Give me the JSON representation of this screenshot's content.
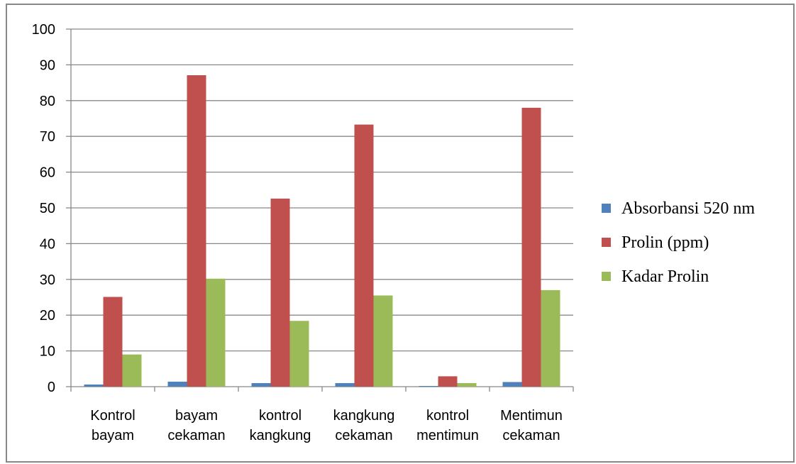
{
  "chart_data": {
    "type": "bar",
    "categories": [
      [
        "Kontrol",
        "bayam"
      ],
      [
        "bayam",
        "cekaman"
      ],
      [
        "kontrol",
        "kangkung"
      ],
      [
        "kangkung",
        "cekaman"
      ],
      [
        "kontrol",
        "mentimun"
      ],
      [
        "Mentimun",
        "cekaman"
      ]
    ],
    "series": [
      {
        "name": "Absorbansi 520 nm",
        "color": "#4F81BD",
        "values": [
          0.6,
          1.4,
          1.0,
          1.0,
          0.2,
          1.3
        ]
      },
      {
        "name": "Prolin (ppm)",
        "color": "#C0504D",
        "values": [
          25.1,
          87.1,
          52.6,
          73.3,
          2.9,
          78.0
        ]
      },
      {
        "name": "Kadar Prolin",
        "color": "#9BBB59",
        "values": [
          9.0,
          30.2,
          18.4,
          25.5,
          1.0,
          27.0
        ]
      }
    ],
    "ylim": [
      0,
      100
    ],
    "yticks": [
      0,
      10,
      20,
      30,
      40,
      50,
      60,
      70,
      80,
      90,
      100
    ],
    "grid": true,
    "legend_position": "right"
  }
}
